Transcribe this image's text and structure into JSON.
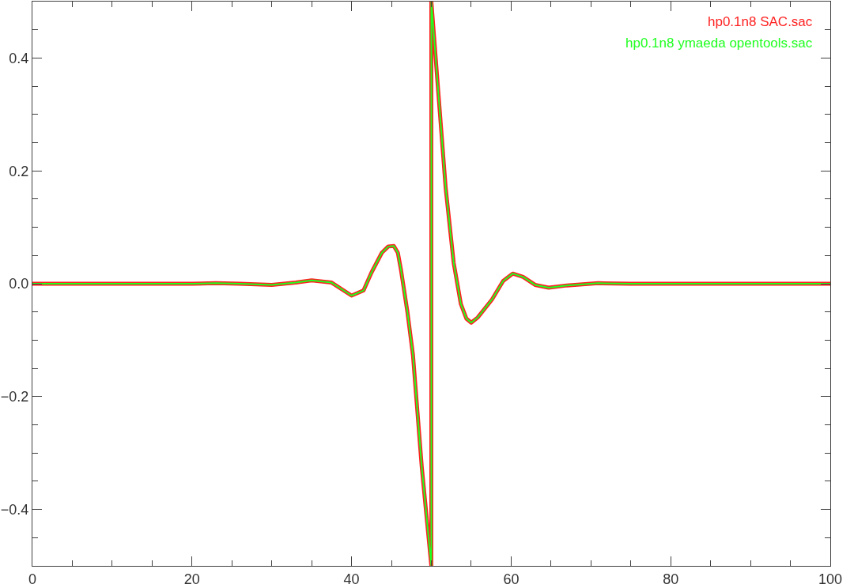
{
  "chart_data": {
    "type": "line",
    "x": [
      0,
      10,
      20,
      23,
      26,
      30,
      33,
      35,
      37.5,
      40,
      41.5,
      42.5,
      43.8,
      44.6,
      45.3,
      45.8,
      46.2,
      47,
      47.7,
      48.8,
      50,
      50,
      50.9,
      51.8,
      52.8,
      53.7,
      54.4,
      55,
      55.8,
      57.6,
      59,
      60.2,
      61.5,
      63,
      64.7,
      67,
      70.9,
      75,
      80,
      90,
      100
    ],
    "series": [
      {
        "name": "hp0.1n8 SAC.sac",
        "color": "#ff2020",
        "values": [
          0,
          0,
          0,
          0.001,
          0,
          -0.002,
          0.002,
          0.006,
          0.002,
          -0.021,
          -0.012,
          0.02,
          0.055,
          0.066,
          0.067,
          0.055,
          0.024,
          -0.05,
          -0.127,
          -0.325,
          -0.5,
          0.5,
          0.334,
          0.169,
          0.037,
          -0.036,
          -0.062,
          -0.069,
          -0.06,
          -0.028,
          0.005,
          0.018,
          0.012,
          -0.002,
          -0.007,
          -0.003,
          0.001,
          0,
          0,
          0,
          0
        ]
      },
      {
        "name": "hp0.1n8 ymaeda opentools.sac",
        "color": "#20ff20",
        "values": [
          0,
          0,
          0,
          0.001,
          0,
          -0.002,
          0.002,
          0.006,
          0.002,
          -0.021,
          -0.012,
          0.02,
          0.055,
          0.066,
          0.067,
          0.055,
          0.024,
          -0.05,
          -0.127,
          -0.325,
          -0.5,
          0.5,
          0.334,
          0.169,
          0.037,
          -0.036,
          -0.062,
          -0.069,
          -0.06,
          -0.028,
          0.005,
          0.018,
          0.012,
          -0.002,
          -0.007,
          -0.003,
          0.001,
          0,
          0,
          0,
          0
        ]
      }
    ],
    "xlim": [
      0,
      100
    ],
    "xticks": [
      {
        "value": 0,
        "label": "0"
      },
      {
        "value": 5,
        "label": null
      },
      {
        "value": 10,
        "label": null
      },
      {
        "value": 15,
        "label": null
      },
      {
        "value": 20,
        "label": "20"
      },
      {
        "value": 25,
        "label": null
      },
      {
        "value": 30,
        "label": null
      },
      {
        "value": 35,
        "label": null
      },
      {
        "value": 40,
        "label": "40"
      },
      {
        "value": 45,
        "label": null
      },
      {
        "value": 50,
        "label": null
      },
      {
        "value": 55,
        "label": null
      },
      {
        "value": 60,
        "label": "60"
      },
      {
        "value": 65,
        "label": null
      },
      {
        "value": 70,
        "label": null
      },
      {
        "value": 75,
        "label": null
      },
      {
        "value": 80,
        "label": "80"
      },
      {
        "value": 85,
        "label": null
      },
      {
        "value": 90,
        "label": null
      },
      {
        "value": 95,
        "label": null
      },
      {
        "value": 100,
        "label": "100"
      }
    ],
    "ylim": [
      -0.5,
      0.5
    ],
    "yticks": [
      {
        "value": -0.45,
        "label": null
      },
      {
        "value": -0.4,
        "label": "−0.4"
      },
      {
        "value": -0.35,
        "label": null
      },
      {
        "value": -0.3,
        "label": null
      },
      {
        "value": -0.25,
        "label": null
      },
      {
        "value": -0.2,
        "label": "−0.2"
      },
      {
        "value": -0.15,
        "label": null
      },
      {
        "value": -0.1,
        "label": null
      },
      {
        "value": -0.05,
        "label": null
      },
      {
        "value": 0,
        "label": "0.0"
      },
      {
        "value": 0.05,
        "label": null
      },
      {
        "value": 0.1,
        "label": null
      },
      {
        "value": 0.15,
        "label": null
      },
      {
        "value": 0.2,
        "label": "0.2"
      },
      {
        "value": 0.25,
        "label": null
      },
      {
        "value": 0.3,
        "label": null
      },
      {
        "value": 0.35,
        "label": null
      },
      {
        "value": 0.4,
        "label": "0.4"
      },
      {
        "value": 0.45,
        "label": null
      }
    ],
    "legend": "top right",
    "marker": "none",
    "line_style": "solid"
  }
}
